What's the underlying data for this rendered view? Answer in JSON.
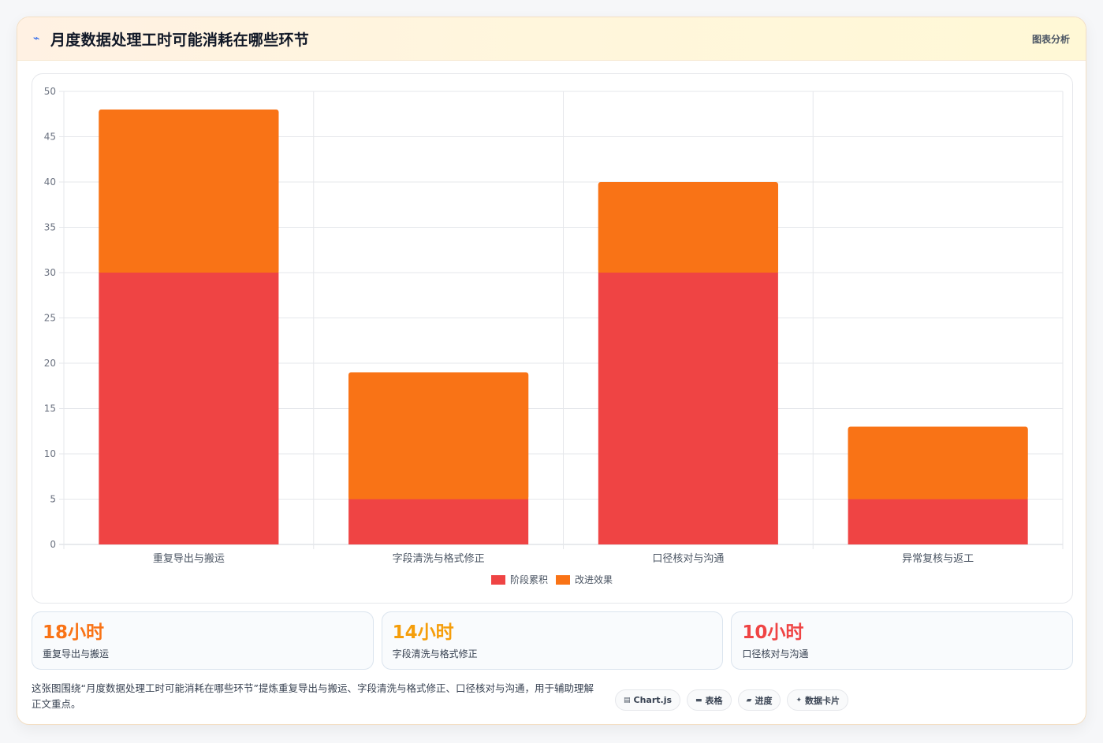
{
  "header": {
    "icon": "pulse-icon",
    "title": "月度数据处理工时可能消耗在哪些环节",
    "badge": "图表分析"
  },
  "chart_data": {
    "type": "bar",
    "stacked": true,
    "categories": [
      "重复导出与搬运",
      "字段清洗与格式修正",
      "口径核对与沟通",
      "异常复核与返工"
    ],
    "series": [
      {
        "name": "阶段累积",
        "values": [
          30,
          5,
          30,
          5
        ],
        "color": "#ef4444"
      },
      {
        "name": "改进效果",
        "values": [
          18,
          14,
          10,
          8
        ],
        "color": "#f97316"
      }
    ],
    "ylim": [
      0,
      50
    ],
    "yticks": [
      0,
      5,
      10,
      15,
      20,
      25,
      30,
      35,
      40,
      45,
      50
    ],
    "grid": true,
    "legend": "bottom"
  },
  "stats": [
    {
      "value": "18小时",
      "label": "重复导出与搬运",
      "color": "#f97316"
    },
    {
      "value": "14小时",
      "label": "字段清洗与格式修正",
      "color": "#f59e0b"
    },
    {
      "value": "10小时",
      "label": "口径核对与沟通",
      "color": "#ef4444"
    }
  ],
  "footer": {
    "note": "这张图围绕“月度数据处理工时可能消耗在哪些环节”提炼重复导出与搬运、字段清洗与格式修正、口径核对与沟通，用于辅助理解正文重点。",
    "chips": [
      {
        "icon": "chart-icon",
        "glyph": "▤",
        "label": "Chart.js"
      },
      {
        "icon": "table-icon",
        "glyph": "▬",
        "label": "表格"
      },
      {
        "icon": "progress-icon",
        "glyph": "▰",
        "label": "进度"
      },
      {
        "icon": "sparkle-icon",
        "glyph": "✦",
        "label": "数据卡片"
      }
    ]
  }
}
